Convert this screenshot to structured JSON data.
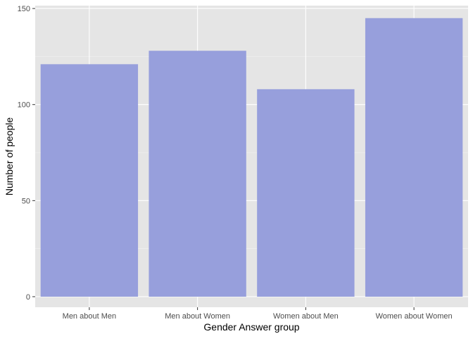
{
  "chart_data": {
    "type": "bar",
    "title": "",
    "xlabel": "Gender Answer group",
    "ylabel": "Number of people",
    "categories": [
      "Men about Men",
      "Men about Women",
      "Women about Men",
      "Women about Women"
    ],
    "values": [
      121,
      128,
      108,
      145
    ],
    "ylim": [
      -5.5,
      151.5
    ],
    "yticks": [
      0,
      50,
      100,
      150
    ],
    "grid": true,
    "legend": "none",
    "colors": {
      "bar": "#979FDC",
      "panel_background": "#E5E5E5",
      "grid_major": "#FFFFFF",
      "grid_minor": "#F2F2F2"
    }
  }
}
